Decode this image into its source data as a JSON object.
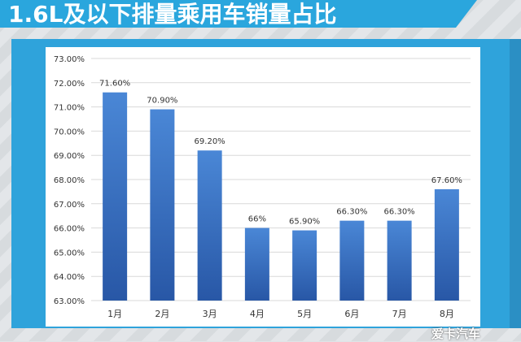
{
  "title": "1.6L及以下排量乘用车销量占比",
  "watermark": "爱卡汽车",
  "colors": {
    "banner": "#2aa6dd",
    "frame": "#2fa3db",
    "bar_top": "#4a87d6",
    "bar_bottom": "#2857a6",
    "grid": "#d9d9d9",
    "text": "#333333"
  },
  "chart_data": {
    "type": "bar",
    "categories": [
      "1月",
      "2月",
      "3月",
      "4月",
      "5月",
      "6月",
      "7月",
      "8月"
    ],
    "values": [
      71.6,
      70.9,
      69.2,
      66.0,
      65.9,
      66.3,
      66.3,
      67.6
    ],
    "data_labels": [
      "71.60%",
      "70.90%",
      "69.20%",
      "66%",
      "65.90%",
      "66.30%",
      "66.30%",
      "67.60%"
    ],
    "yticks": [
      "63.00%",
      "64.00%",
      "65.00%",
      "66.00%",
      "67.00%",
      "68.00%",
      "69.00%",
      "70.00%",
      "71.00%",
      "72.00%",
      "73.00%"
    ],
    "ylim": [
      63,
      73
    ],
    "grid": true,
    "legend": "none"
  }
}
